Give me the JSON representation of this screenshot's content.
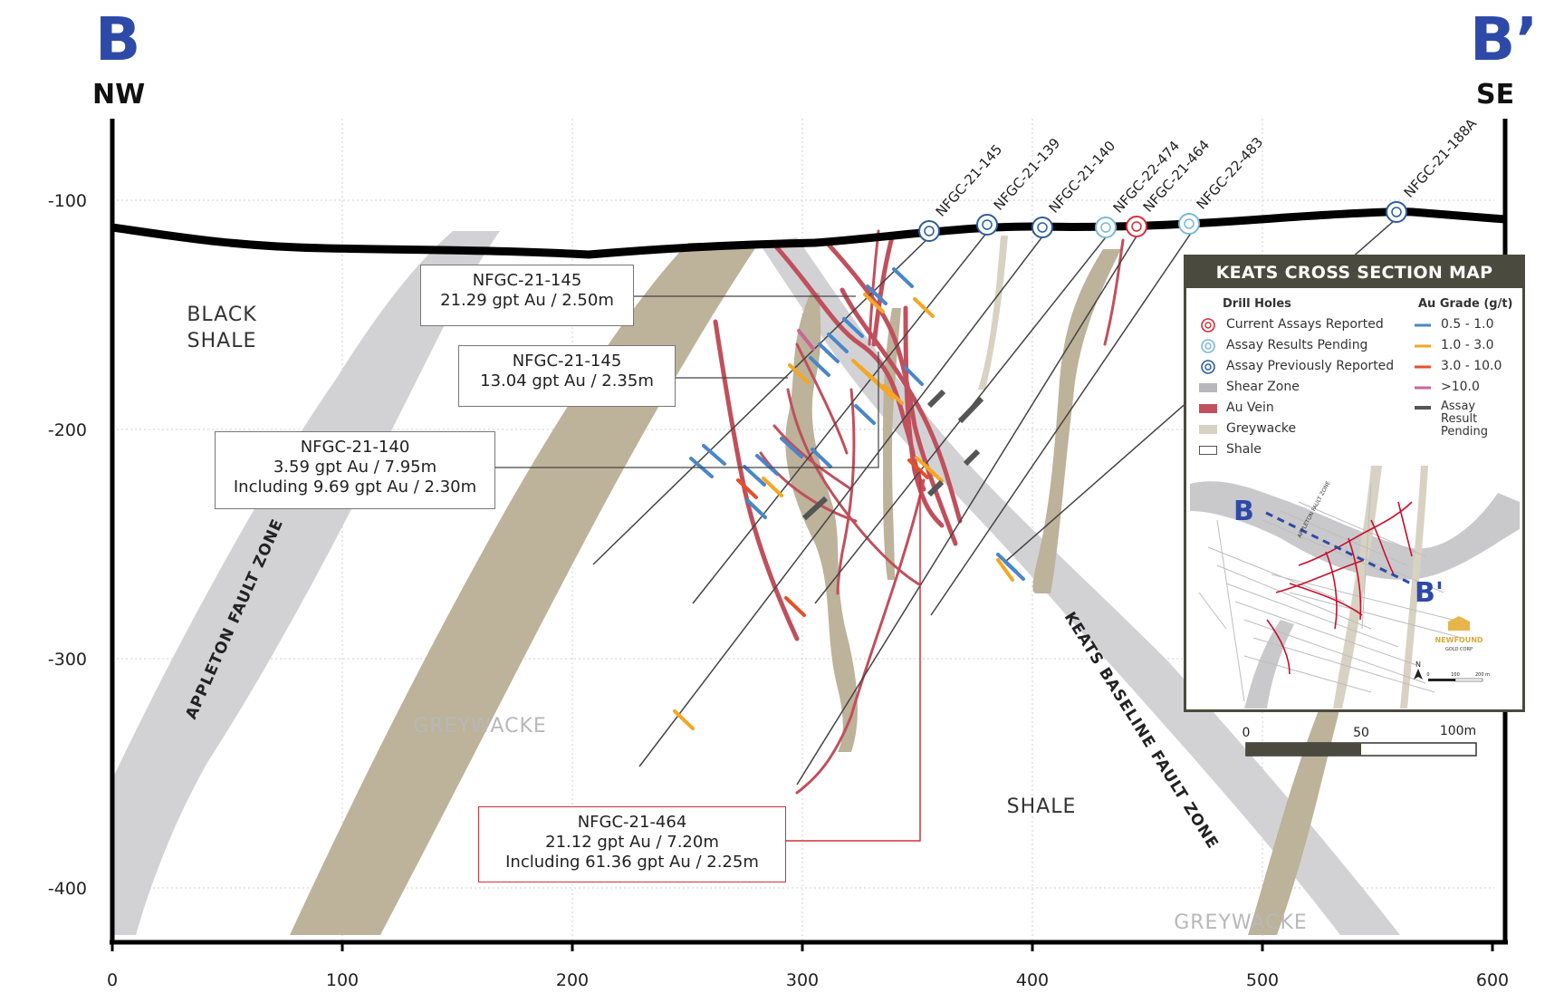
{
  "header": {
    "left_letter": "B",
    "right_letter": "B’",
    "left_direction": "NW",
    "right_direction": "SE"
  },
  "axes": {
    "y_ticks": [
      "-100",
      "-200",
      "-300",
      "-400"
    ],
    "x_ticks": [
      "0",
      "100",
      "200",
      "300",
      "400",
      "500",
      "600"
    ]
  },
  "drill_holes": [
    {
      "name": "NFGC-21-145",
      "status": "assay-previously-reported"
    },
    {
      "name": "NFGC-21-139",
      "status": "assay-previously-reported"
    },
    {
      "name": "NFGC-21-140",
      "status": "assay-previously-reported"
    },
    {
      "name": "NFGC-22-474",
      "status": "assay-results-pending"
    },
    {
      "name": "NFGC-21-464",
      "status": "current-assays-reported"
    },
    {
      "name": "NFGC-22-483",
      "status": "assay-results-pending"
    },
    {
      "name": "NFGC-21-188A",
      "status": "assay-previously-reported"
    }
  ],
  "rock_labels": {
    "black_shale_1": "BLACK",
    "black_shale_2": "SHALE",
    "greywacke_1": "GREYWACKE",
    "shale": "SHALE",
    "greywacke_2": "GREYWACKE"
  },
  "fault_labels": {
    "appleton": "APPLETON FAULT ZONE",
    "keats": "KEATS BASELINE FAULT ZONE"
  },
  "callouts": [
    {
      "lines": [
        "NFGC-21-145",
        "21.29 gpt Au / 2.50m"
      ]
    },
    {
      "lines": [
        "NFGC-21-145",
        "13.04 gpt Au / 2.35m"
      ]
    },
    {
      "lines": [
        "NFGC-21-140",
        "3.59 gpt Au / 7.95m",
        "Including 9.69 gpt Au / 2.30m"
      ]
    },
    {
      "lines": [
        "NFGC-21-464",
        "21.12 gpt Au / 7.20m",
        "Including 61.36 gpt Au / 2.25m"
      ]
    }
  ],
  "legend": {
    "title": "KEATS CROSS SECTION MAP",
    "drill_holes_heading": "Drill Holes",
    "grade_heading": "Au Grade (g/t)",
    "items_left": [
      {
        "label": "Current Assays Reported",
        "icon": "red-target-icon",
        "color": "#d0303a"
      },
      {
        "label": "Assay Results Pending",
        "icon": "light-blue-target-icon",
        "color": "#79b8dc"
      },
      {
        "label": "Assay Previously Reported",
        "icon": "blue-target-icon",
        "color": "#2b5c9e"
      },
      {
        "label": "Shear Zone",
        "icon": "grey-swatch",
        "color": "#b7b7bb"
      },
      {
        "label": "Au Vein",
        "icon": "red-swatch",
        "color": "#c0505c"
      },
      {
        "label": "Greywacke",
        "icon": "tan-swatch",
        "color": "#d8d2c2"
      },
      {
        "label": "Shale",
        "icon": "white-swatch",
        "color": "#ffffff"
      }
    ],
    "items_right": [
      {
        "label": "0.5 - 1.0",
        "color": "#4a86c8"
      },
      {
        "label": "1.0 - 3.0",
        "color": "#f5a623"
      },
      {
        "label": "3.0 - 10.0",
        "color": "#e2502a"
      },
      {
        "label": ">10.0",
        "color": "#c8669a"
      },
      {
        "label": "Assay Result Pending",
        "color": "#555555"
      }
    ],
    "map_labels": {
      "b": "B",
      "b_prime": "B'",
      "fault": "APPLETON FAULT ZONE"
    },
    "brand": {
      "line1": "NEWFOUND",
      "line2": "GOLD CORP"
    },
    "north": "N",
    "map_scale": [
      "0",
      "100",
      "200 m"
    ]
  },
  "scale_bar": {
    "labels": [
      "0",
      "50",
      "100m"
    ]
  },
  "colors": {
    "shear_zone": "#d2d2d4",
    "greywacke": "#bdb29a",
    "au_vein": "#c0505c",
    "accent_blue": "#2e4aa8"
  }
}
